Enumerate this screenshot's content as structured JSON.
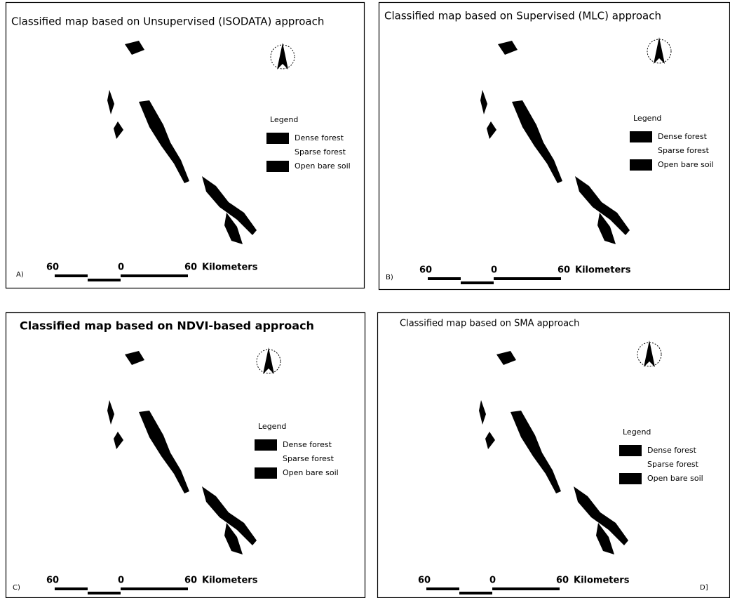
{
  "panels": [
    {
      "title": "Classified map based on Unsupervised (ISODATA) approach",
      "label": "A)",
      "legend": {
        "title": "Legend",
        "items": [
          "Dense forest",
          "Sparse forest",
          "Open bare soil"
        ]
      },
      "scale": {
        "ticks": [
          60,
          0,
          60
        ],
        "unit": "Kilometers"
      }
    },
    {
      "title": "Classified map based on Supervised (MLC) approach",
      "label": "B)",
      "legend": {
        "title": "Legend",
        "items": [
          "Dense forest",
          "Sparse forest",
          "Open bare soil"
        ]
      },
      "scale": {
        "ticks": [
          60,
          0,
          60
        ],
        "unit": "Kilometers"
      }
    },
    {
      "title": "Classified map based on NDVI-based approach",
      "label": "C)",
      "legend": {
        "title": "Legend",
        "items": [
          "Dense forest",
          "Sparse forest",
          "Open bare soil"
        ]
      },
      "scale": {
        "ticks": [
          60,
          0,
          60
        ],
        "unit": "Kilometers"
      }
    },
    {
      "title": "Classified map based on SMA approach",
      "label": "D]",
      "legend": {
        "title": "Legend",
        "items": [
          "Dense forest",
          "Sparse forest",
          "Open bare soil"
        ]
      },
      "scale": {
        "ticks": [
          60,
          0,
          60
        ],
        "unit": "Kilometers"
      }
    }
  ]
}
